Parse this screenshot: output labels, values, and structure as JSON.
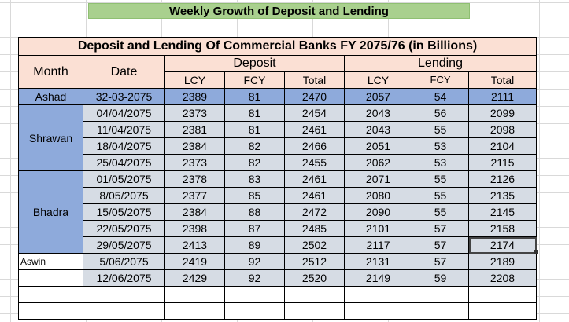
{
  "sheet": {
    "banner_title": "Weekly Growth of Deposit and Lending",
    "table_title": "Deposit and Lending Of Commercial Banks FY 2075/76 (in Billions)",
    "headers": {
      "month": "Month",
      "date": "Date",
      "deposit": "Deposit",
      "lending": "Lending",
      "deposit_sub": [
        "LCY",
        "FCY",
        "Total"
      ],
      "lending_sub": [
        "LCY",
        "FCY",
        "Total"
      ]
    },
    "months": {
      "ashad": "Ashad",
      "shrawan": "Shrawan",
      "bhadra": "Bhadra",
      "aswin": "Aswin"
    },
    "rows": [
      [
        "32-03-2075",
        "2389",
        "81",
        "2470",
        "2057",
        "54",
        "2111"
      ],
      [
        "04/04/2075",
        "2373",
        "81",
        "2454",
        "2043",
        "56",
        "2099"
      ],
      [
        "11/04/2075",
        "2381",
        "81",
        "2461",
        "2043",
        "55",
        "2098"
      ],
      [
        "18/04/2075",
        "2384",
        "82",
        "2466",
        "2051",
        "53",
        "2104"
      ],
      [
        "25/04/2075",
        "2373",
        "82",
        "2455",
        "2062",
        "53",
        "2115"
      ],
      [
        "01/05/2075",
        "2378",
        "83",
        "2461",
        "2071",
        "55",
        "2126"
      ],
      [
        "8/05/2075",
        "2377",
        "85",
        "2461",
        "2080",
        "55",
        "2135"
      ],
      [
        "15/05/2075",
        "2384",
        "88",
        "2472",
        "2090",
        "55",
        "2145"
      ],
      [
        "22/05/2075",
        "2398",
        "87",
        "2485",
        "2101",
        "57",
        "2158"
      ],
      [
        "29/05/2075",
        "2413",
        "89",
        "2502",
        "2117",
        "57",
        "2174"
      ],
      [
        "5/06/2075",
        "2419",
        "92",
        "2512",
        "2131",
        "57",
        "2189"
      ],
      [
        "12/06/2075",
        "2429",
        "92",
        "2520",
        "2149",
        "59",
        "2208"
      ]
    ]
  },
  "colors": {
    "banner": "#a9d08e",
    "header": "#fbe0d4",
    "month_highlight": "#8eaadb",
    "body": "#d6dce4"
  }
}
